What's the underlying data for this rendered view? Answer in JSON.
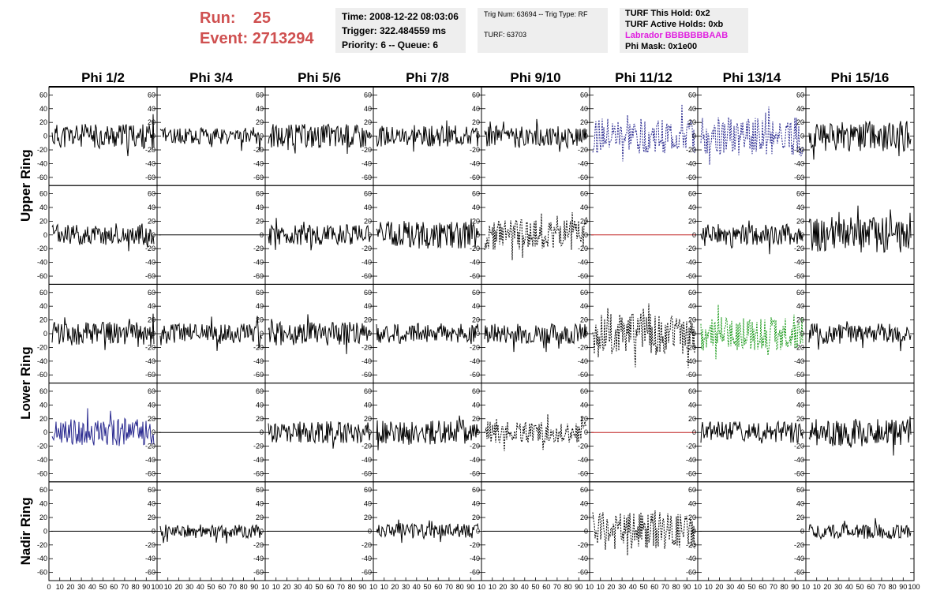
{
  "header": {
    "run_label": "Run:",
    "run_value": "25",
    "event_label": "Event:",
    "event_value": "2713294",
    "time": "Time: 2008-12-22 08:03:06",
    "trigger": "Trigger: 322.484559 ms",
    "priority": "Priority: 6 -- Queue: 6",
    "trig_num": "Trig Num: 63694 -- Trig Type: RF",
    "turf": "TURF: 63703",
    "turf_hold": "TURF This Hold: 0x2",
    "turf_active": "TURF Active Holds: 0xb",
    "labrador": "Labrador BBBBBBBAAB",
    "phi_mask": "Phi Mask: 0x1e00"
  },
  "colors": {
    "run_text": "#cf5050",
    "labrador_text": "#e020e0",
    "info_bg": "#eeeeee",
    "trace_black": "#000000",
    "trace_blue": "#2a2a90",
    "trace_green": "#1a9a1a",
    "trace_red": "#c02020"
  },
  "chart_data": {
    "type": "line",
    "columns": [
      "Phi 1/2",
      "Phi 3/4",
      "Phi 5/6",
      "Phi 7/8",
      "Phi 9/10",
      "Phi 11/12",
      "Phi 13/14",
      "Phi 15/16"
    ],
    "rows": [
      "Upper Ring",
      "Lower Ring",
      "Nadir Ring"
    ],
    "ylim": [
      -65,
      65
    ],
    "xlim": [
      0,
      100
    ],
    "y_ticks": [
      "-60",
      "-40",
      "-20",
      "0",
      "20",
      "40",
      "60"
    ],
    "x_ticks_first": [
      "0",
      "10",
      "20",
      "30",
      "40",
      "50",
      "60",
      "70",
      "80",
      "90",
      "100"
    ],
    "x_ticks_mid": [
      "10",
      "20",
      "30",
      "40",
      "50",
      "60",
      "70",
      "80",
      "90",
      "10"
    ],
    "x_ticks_last": [
      "10",
      "20",
      "30",
      "40",
      "50",
      "60",
      "70",
      "80",
      "90",
      "100"
    ],
    "grid": false,
    "panels": [
      [
        {
          "style": "solid",
          "color": "black",
          "amp": 18
        },
        {
          "style": "solid",
          "color": "black",
          "amp": 12
        },
        {
          "style": "solid",
          "color": "black",
          "amp": 18
        },
        {
          "style": "solid",
          "color": "black",
          "amp": 15
        },
        {
          "style": "solid",
          "color": "black",
          "amp": 15
        },
        {
          "style": "dashed",
          "color": "blue",
          "amp": 26
        },
        {
          "style": "dashed",
          "color": "blue",
          "amp": 28
        },
        {
          "style": "solid",
          "color": "black",
          "amp": 22
        }
      ],
      [
        {
          "style": "solid",
          "color": "black",
          "amp": 15
        },
        {
          "style": "flat",
          "color": "black",
          "amp": 0
        },
        {
          "style": "solid",
          "color": "black",
          "amp": 15
        },
        {
          "style": "solid",
          "color": "black",
          "amp": 20
        },
        {
          "style": "dashed",
          "color": "black",
          "amp": 22
        },
        {
          "style": "flat",
          "color": "red",
          "amp": 0
        },
        {
          "style": "solid",
          "color": "black",
          "amp": 16
        },
        {
          "style": "solid",
          "color": "black",
          "amp": 26
        }
      ],
      [
        {
          "style": "solid",
          "color": "black",
          "amp": 17
        },
        {
          "style": "solid",
          "color": "black",
          "amp": 15
        },
        {
          "style": "solid",
          "color": "black",
          "amp": 17
        },
        {
          "style": "solid",
          "color": "black",
          "amp": 15
        },
        {
          "style": "solid",
          "color": "black",
          "amp": 15
        },
        {
          "style": "dashed",
          "color": "black",
          "amp": 30
        },
        {
          "style": "dashed",
          "color": "green",
          "amp": 24
        },
        {
          "style": "solid",
          "color": "black",
          "amp": 15
        }
      ],
      [
        {
          "style": "solid",
          "color": "blue",
          "amp": 20
        },
        {
          "style": "flat",
          "color": "black",
          "amp": 0
        },
        {
          "style": "solid",
          "color": "black",
          "amp": 16
        },
        {
          "style": "solid",
          "color": "black",
          "amp": 18
        },
        {
          "style": "dashed",
          "color": "black",
          "amp": 16
        },
        {
          "style": "flat",
          "color": "red",
          "amp": 0
        },
        {
          "style": "solid",
          "color": "black",
          "amp": 16
        },
        {
          "style": "solid",
          "color": "black",
          "amp": 20
        }
      ],
      [
        {
          "style": "flat",
          "color": "black",
          "amp": 0
        },
        {
          "style": "solid",
          "color": "black",
          "amp": 10
        },
        {
          "style": "flat",
          "color": "black",
          "amp": 0
        },
        {
          "style": "solid",
          "color": "black",
          "amp": 11
        },
        {
          "style": "flat",
          "color": "black",
          "amp": 0
        },
        {
          "style": "dashed",
          "color": "black",
          "amp": 28
        },
        {
          "style": "flat",
          "color": "black",
          "amp": 0
        },
        {
          "style": "solid",
          "color": "black",
          "amp": 11
        }
      ]
    ]
  }
}
